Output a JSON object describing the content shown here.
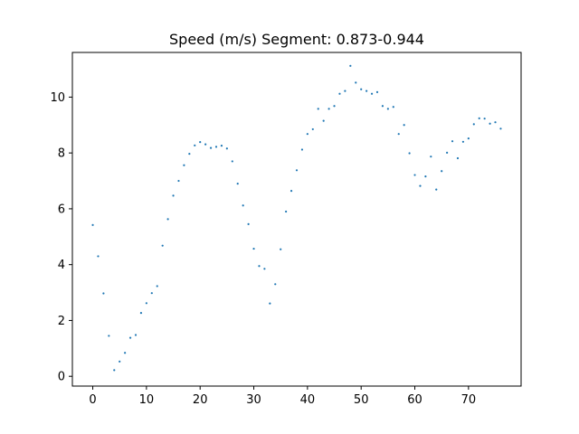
{
  "chart_data": {
    "type": "scatter",
    "title": "Speed (m/s) Segment: 0.873-0.944",
    "xlabel": "",
    "ylabel": "",
    "xlim": [
      -3.8,
      79.8
    ],
    "ylim": [
      -0.35,
      11.6
    ],
    "xticks": [
      0,
      10,
      20,
      30,
      40,
      50,
      60,
      70
    ],
    "yticks": [
      0,
      2,
      4,
      6,
      8,
      10
    ],
    "grid": false,
    "point_color": "#1f77b4",
    "x": [
      0,
      1,
      2,
      3,
      4,
      5,
      6,
      7,
      8,
      9,
      10,
      11,
      12,
      13,
      14,
      15,
      16,
      17,
      18,
      19,
      20,
      21,
      22,
      23,
      24,
      25,
      26,
      27,
      28,
      29,
      30,
      31,
      32,
      33,
      34,
      35,
      36,
      37,
      38,
      39,
      40,
      41,
      42,
      43,
      44,
      45,
      46,
      47,
      48,
      49,
      50,
      51,
      52,
      53,
      54,
      55,
      56,
      57,
      58,
      59,
      60,
      61,
      62,
      63,
      64,
      65,
      66,
      67,
      68,
      69,
      70,
      71,
      72,
      73,
      74,
      75,
      76
    ],
    "y": [
      5.42,
      4.3,
      2.97,
      1.45,
      0.22,
      0.53,
      0.84,
      1.38,
      1.48,
      2.27,
      2.62,
      2.98,
      3.23,
      4.68,
      5.63,
      6.47,
      7.0,
      7.56,
      7.97,
      8.27,
      8.39,
      8.31,
      8.18,
      8.22,
      8.26,
      8.16,
      7.7,
      6.9,
      6.12,
      5.45,
      4.57,
      3.95,
      3.85,
      2.61,
      3.3,
      4.55,
      5.9,
      6.64,
      7.38,
      8.12,
      8.68,
      8.85,
      9.58,
      9.15,
      9.58,
      9.68,
      10.12,
      10.22,
      11.12,
      10.52,
      10.28,
      10.22,
      10.12,
      10.18,
      9.68,
      9.58,
      9.65,
      8.68,
      9.0,
      7.99,
      7.21,
      6.82,
      7.16,
      7.87,
      6.69,
      7.35,
      8.01,
      8.42,
      7.81,
      8.4,
      8.52,
      9.03,
      9.24,
      9.23,
      9.05,
      9.1,
      8.87
    ]
  }
}
